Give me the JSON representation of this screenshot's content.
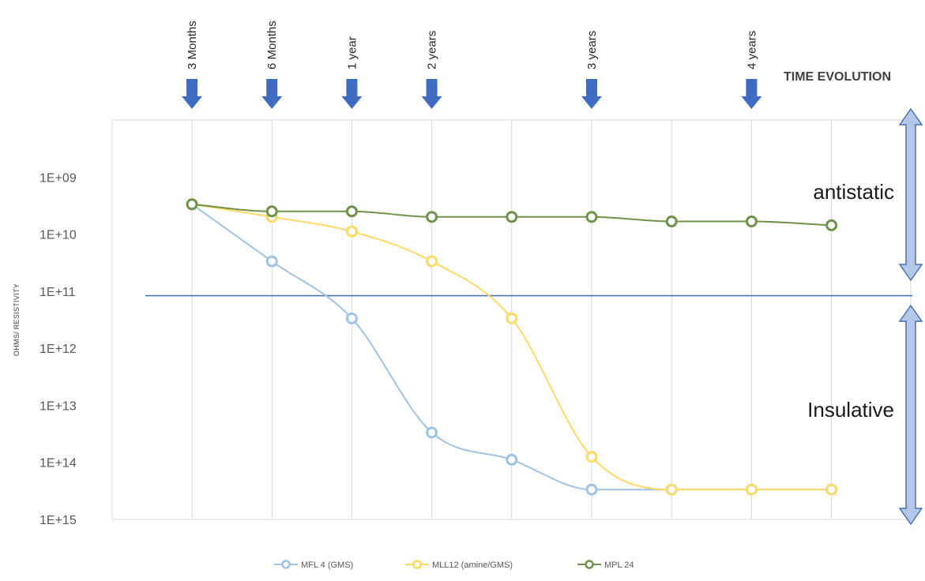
{
  "chart_data": {
    "type": "line",
    "title": "",
    "ylabel": "OHMS/ RESISTIVITY",
    "xlabel": "",
    "y_scale": "log",
    "y_reversed": true,
    "y_ticks": [
      "1E+09",
      "1E+10",
      "1E+11",
      "1E+12",
      "1E+13",
      "1E+14",
      "1E+15"
    ],
    "y_tick_exponents": [
      9,
      10,
      11,
      12,
      13,
      14,
      15
    ],
    "ylim_exponent": [
      8,
      15
    ],
    "grid": "vertical",
    "x_count": 9,
    "series": [
      {
        "name": "MFL 4 (GMS)",
        "color": "#9dc3e6",
        "values": [
          3000000000.0,
          30000000000.0,
          300000000000.0,
          30000000000000.0,
          90000000000000.0,
          300000000000000.0,
          300000000000000.0,
          300000000000000.0,
          300000000000000.0
        ]
      },
      {
        "name": "MLL12 (amine/GMS)",
        "color": "#ffd966",
        "values": [
          3000000000.0,
          5000000000.0,
          9000000000.0,
          30000000000.0,
          300000000000.0,
          80000000000000.0,
          300000000000000.0,
          300000000000000.0,
          300000000000000.0
        ]
      },
      {
        "name": "MPL 24",
        "color": "#70914a",
        "values": [
          3000000000.0,
          4000000000.0,
          4000000000.0,
          5000000000.0,
          5000000000.0,
          5000000000.0,
          6000000000.0,
          6000000000.0,
          7000000000.0
        ]
      }
    ],
    "threshold": {
      "value": 120000000000.0,
      "color": "#4a72b0"
    },
    "milestones": [
      {
        "label": "3 Months",
        "x_index": 0
      },
      {
        "label": "6 Months",
        "x_index": 1
      },
      {
        "label": "1 year",
        "x_index": 2
      },
      {
        "label": "2 years",
        "x_index": 3
      },
      {
        "label": "3 years",
        "x_index": 5
      },
      {
        "label": "4 years",
        "x_index": 7
      }
    ],
    "time_label": "TIME EVOLUTION",
    "zones": [
      {
        "label": "antistatic",
        "range_exponent": [
          8,
          11
        ]
      },
      {
        "label": "Insulative",
        "range_exponent": [
          11,
          15
        ]
      }
    ],
    "legend_position": "bottom-center",
    "colors": {
      "arrow": "#3f6cc0",
      "grid": "#d9d9d9",
      "double_arrow_fill": "#b4c7e7",
      "double_arrow_stroke": "#4a72b0"
    }
  }
}
